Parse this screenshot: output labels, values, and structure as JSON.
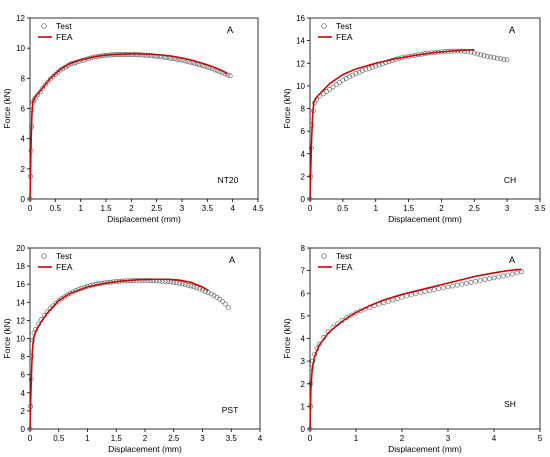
{
  "chart_data": [
    {
      "type": "scatter",
      "panel_label": "A",
      "corner_tag": "NT20",
      "xlabel": "Displacement (mm)",
      "ylabel": "Force (kN)",
      "xlim": [
        0,
        4.5
      ],
      "ylim": [
        0,
        12
      ],
      "xticks": [
        0,
        0.5,
        1,
        1.5,
        2,
        2.5,
        3,
        3.5,
        4,
        4.5
      ],
      "yticks": [
        0,
        2,
        4,
        6,
        8,
        10,
        12
      ],
      "legend": {
        "position": "top-left",
        "entries": [
          "Test",
          "FEA"
        ]
      },
      "series": [
        {
          "name": "Test",
          "style": "open-circle",
          "color": "#555555",
          "x": [
            0,
            0.01,
            0.02,
            0.03,
            0.04,
            0.06,
            0.08,
            0.1,
            0.15,
            0.2,
            0.25,
            0.3,
            0.35,
            0.4,
            0.45,
            0.5,
            0.55,
            0.6,
            0.65,
            0.7,
            0.75,
            0.8,
            0.85,
            0.9,
            0.95,
            1.0,
            1.05,
            1.1,
            1.15,
            1.2,
            1.25,
            1.3,
            1.35,
            1.4,
            1.45,
            1.5,
            1.55,
            1.6,
            1.65,
            1.7,
            1.75,
            1.8,
            1.85,
            1.9,
            1.95,
            2.0,
            2.05,
            2.1,
            2.15,
            2.2,
            2.25,
            2.3,
            2.35,
            2.4,
            2.45,
            2.5,
            2.55,
            2.6,
            2.65,
            2.7,
            2.75,
            2.8,
            2.85,
            2.9,
            2.95,
            3.0,
            3.05,
            3.1,
            3.15,
            3.2,
            3.25,
            3.3,
            3.35,
            3.4,
            3.45,
            3.5,
            3.55,
            3.6,
            3.65,
            3.7,
            3.75,
            3.8,
            3.85,
            3.9,
            3.95
          ],
          "y": [
            0,
            1.5,
            3.2,
            4.8,
            5.9,
            6.4,
            6.55,
            6.7,
            6.9,
            7.1,
            7.35,
            7.55,
            7.75,
            7.95,
            8.1,
            8.25,
            8.4,
            8.55,
            8.65,
            8.75,
            8.85,
            8.95,
            9.0,
            9.05,
            9.1,
            9.15,
            9.2,
            9.25,
            9.3,
            9.35,
            9.4,
            9.42,
            9.45,
            9.48,
            9.5,
            9.52,
            9.54,
            9.55,
            9.56,
            9.57,
            9.58,
            9.58,
            9.58,
            9.58,
            9.58,
            9.58,
            9.58,
            9.57,
            9.56,
            9.55,
            9.54,
            9.53,
            9.52,
            9.5,
            9.48,
            9.46,
            9.44,
            9.42,
            9.4,
            9.38,
            9.35,
            9.32,
            9.3,
            9.27,
            9.24,
            9.2,
            9.16,
            9.12,
            9.08,
            9.04,
            9.0,
            8.95,
            8.9,
            8.85,
            8.8,
            8.75,
            8.7,
            8.63,
            8.56,
            8.5,
            8.43,
            8.36,
            8.3,
            8.23,
            8.17
          ]
        },
        {
          "name": "FEA",
          "style": "line",
          "color": "#cc0000",
          "x": [
            0,
            0.02,
            0.04,
            0.06,
            0.1,
            0.2,
            0.4,
            0.6,
            0.8,
            1.0,
            1.2,
            1.4,
            1.6,
            1.8,
            2.0,
            2.2,
            2.4,
            2.6,
            2.8,
            3.0,
            3.2,
            3.4,
            3.6,
            3.8,
            3.9
          ],
          "y": [
            0,
            3.5,
            5.8,
            6.5,
            6.75,
            7.15,
            8.0,
            8.6,
            9.0,
            9.22,
            9.38,
            9.5,
            9.57,
            9.6,
            9.62,
            9.62,
            9.6,
            9.55,
            9.47,
            9.35,
            9.2,
            9.0,
            8.78,
            8.5,
            8.3
          ]
        }
      ]
    },
    {
      "type": "scatter",
      "panel_label": "A",
      "corner_tag": "CH",
      "xlabel": "Displacement (mm)",
      "ylabel": "Force (kN)",
      "xlim": [
        0,
        3.5
      ],
      "ylim": [
        0,
        16
      ],
      "xticks": [
        0,
        0.5,
        1,
        1.5,
        2,
        2.5,
        3,
        3.5
      ],
      "yticks": [
        0,
        2,
        4,
        6,
        8,
        10,
        12,
        14,
        16
      ],
      "legend": {
        "position": "top-left",
        "entries": [
          "Test",
          "FEA"
        ]
      },
      "series": [
        {
          "name": "Test",
          "style": "open-circle",
          "color": "#555555",
          "x": [
            0,
            0.01,
            0.02,
            0.03,
            0.05,
            0.07,
            0.1,
            0.15,
            0.2,
            0.25,
            0.3,
            0.35,
            0.4,
            0.45,
            0.5,
            0.55,
            0.6,
            0.65,
            0.7,
            0.75,
            0.8,
            0.85,
            0.9,
            0.95,
            1.0,
            1.05,
            1.1,
            1.15,
            1.2,
            1.25,
            1.3,
            1.35,
            1.4,
            1.45,
            1.5,
            1.55,
            1.6,
            1.65,
            1.7,
            1.75,
            1.8,
            1.85,
            1.9,
            1.95,
            2.0,
            2.05,
            2.1,
            2.15,
            2.2,
            2.25,
            2.3,
            2.35,
            2.4,
            2.45,
            2.5,
            2.55,
            2.6,
            2.65,
            2.7,
            2.75,
            2.8,
            2.85,
            2.9,
            2.95,
            3.0
          ],
          "y": [
            0,
            2.0,
            4.5,
            6.5,
            7.8,
            8.5,
            8.8,
            9.1,
            9.3,
            9.5,
            9.7,
            9.9,
            10.1,
            10.3,
            10.5,
            10.65,
            10.8,
            10.95,
            11.1,
            11.2,
            11.35,
            11.45,
            11.55,
            11.65,
            11.75,
            11.85,
            11.95,
            12.05,
            12.15,
            12.25,
            12.35,
            12.45,
            12.5,
            12.55,
            12.6,
            12.65,
            12.7,
            12.75,
            12.8,
            12.85,
            12.9,
            12.92,
            12.95,
            12.98,
            13.0,
            13.02,
            13.05,
            13.07,
            13.08,
            13.08,
            13.08,
            13.06,
            13.02,
            12.97,
            12.9,
            12.82,
            12.74,
            12.66,
            12.6,
            12.55,
            12.5,
            12.45,
            12.4,
            12.35,
            12.3
          ]
        },
        {
          "name": "FEA",
          "style": "line",
          "color": "#cc0000",
          "x": [
            0,
            0.02,
            0.04,
            0.06,
            0.1,
            0.2,
            0.3,
            0.5,
            0.7,
            1.0,
            1.3,
            1.6,
            1.9,
            2.2,
            2.5
          ],
          "y": [
            0,
            4.5,
            7.5,
            8.6,
            9.0,
            9.6,
            10.2,
            11.0,
            11.5,
            12.0,
            12.4,
            12.7,
            12.95,
            13.1,
            13.2
          ]
        }
      ]
    },
    {
      "type": "scatter",
      "panel_label": "A",
      "corner_tag": "PST",
      "xlabel": "Displacement (mm)",
      "ylabel": "Force (kN)",
      "xlim": [
        0,
        4
      ],
      "ylim": [
        0,
        20
      ],
      "xticks": [
        0,
        0.5,
        1,
        1.5,
        2,
        2.5,
        3,
        3.5,
        4
      ],
      "yticks": [
        0,
        2,
        4,
        6,
        8,
        10,
        12,
        14,
        16,
        18,
        20
      ],
      "legend": {
        "position": "top-left",
        "entries": [
          "Test",
          "FEA"
        ]
      },
      "series": [
        {
          "name": "Test",
          "style": "open-circle",
          "color": "#555555",
          "x": [
            0,
            0.01,
            0.02,
            0.03,
            0.05,
            0.07,
            0.1,
            0.15,
            0.2,
            0.25,
            0.3,
            0.35,
            0.4,
            0.45,
            0.5,
            0.55,
            0.6,
            0.65,
            0.7,
            0.75,
            0.8,
            0.85,
            0.9,
            0.95,
            1.0,
            1.05,
            1.1,
            1.15,
            1.2,
            1.25,
            1.3,
            1.35,
            1.4,
            1.45,
            1.5,
            1.55,
            1.6,
            1.65,
            1.7,
            1.75,
            1.8,
            1.85,
            1.9,
            1.95,
            2.0,
            2.05,
            2.1,
            2.15,
            2.2,
            2.25,
            2.3,
            2.35,
            2.4,
            2.45,
            2.5,
            2.55,
            2.6,
            2.65,
            2.7,
            2.75,
            2.8,
            2.85,
            2.9,
            2.95,
            3.0,
            3.05,
            3.1,
            3.15,
            3.2,
            3.25,
            3.3,
            3.35,
            3.4,
            3.45
          ],
          "y": [
            0,
            2.5,
            5.5,
            8.0,
            9.8,
            10.6,
            11.0,
            11.6,
            12.1,
            12.55,
            12.95,
            13.3,
            13.6,
            13.9,
            14.15,
            14.4,
            14.6,
            14.8,
            15.0,
            15.15,
            15.3,
            15.45,
            15.55,
            15.65,
            15.75,
            15.85,
            15.92,
            16.0,
            16.05,
            16.1,
            16.15,
            16.2,
            16.23,
            16.26,
            16.29,
            16.32,
            16.34,
            16.36,
            16.37,
            16.38,
            16.39,
            16.4,
            16.4,
            16.4,
            16.4,
            16.4,
            16.39,
            16.38,
            16.37,
            16.35,
            16.33,
            16.3,
            16.27,
            16.24,
            16.2,
            16.15,
            16.1,
            16.03,
            15.96,
            15.88,
            15.8,
            15.7,
            15.6,
            15.48,
            15.36,
            15.22,
            15.08,
            14.92,
            14.75,
            14.55,
            14.35,
            14.1,
            13.8,
            13.4
          ]
        },
        {
          "name": "FEA",
          "style": "line",
          "color": "#cc0000",
          "x": [
            0,
            0.02,
            0.04,
            0.06,
            0.1,
            0.2,
            0.3,
            0.5,
            0.7,
            1.0,
            1.3,
            1.6,
            1.9,
            2.2,
            2.4,
            2.6,
            2.8,
            3.0,
            3.1
          ],
          "y": [
            0,
            5.0,
            8.5,
            10.0,
            10.8,
            11.9,
            12.8,
            14.2,
            15.0,
            15.7,
            16.1,
            16.35,
            16.5,
            16.55,
            16.55,
            16.45,
            16.2,
            15.7,
            15.3
          ]
        }
      ]
    },
    {
      "type": "scatter",
      "panel_label": "A",
      "corner_tag": "SH",
      "xlabel": "Displacement (mm)",
      "ylabel": "Force (kN)",
      "xlim": [
        0,
        5
      ],
      "ylim": [
        0,
        8
      ],
      "xticks": [
        0,
        1,
        2,
        3,
        4,
        5
      ],
      "yticks": [
        0,
        1,
        2,
        3,
        4,
        5,
        6,
        7,
        8
      ],
      "legend": {
        "position": "top-left",
        "entries": [
          "Test",
          "FEA"
        ]
      },
      "series": [
        {
          "name": "Test",
          "style": "open-circle",
          "color": "#555555",
          "x": [
            0,
            0.01,
            0.02,
            0.04,
            0.06,
            0.1,
            0.15,
            0.2,
            0.3,
            0.4,
            0.5,
            0.6,
            0.7,
            0.8,
            0.9,
            1.0,
            1.1,
            1.2,
            1.3,
            1.4,
            1.5,
            1.6,
            1.7,
            1.8,
            1.9,
            2.0,
            2.1,
            2.2,
            2.3,
            2.4,
            2.5,
            2.6,
            2.7,
            2.8,
            2.9,
            3.0,
            3.1,
            3.2,
            3.3,
            3.4,
            3.5,
            3.6,
            3.7,
            3.8,
            3.9,
            4.0,
            4.1,
            4.2,
            4.3,
            4.4,
            4.5,
            4.6
          ],
          "y": [
            0,
            1.0,
            2.0,
            2.7,
            3.0,
            3.3,
            3.55,
            3.75,
            4.05,
            4.3,
            4.5,
            4.65,
            4.8,
            4.92,
            5.03,
            5.13,
            5.22,
            5.3,
            5.38,
            5.45,
            5.52,
            5.58,
            5.64,
            5.7,
            5.76,
            5.82,
            5.88,
            5.93,
            5.98,
            6.03,
            6.08,
            6.12,
            6.16,
            6.2,
            6.24,
            6.28,
            6.32,
            6.36,
            6.4,
            6.44,
            6.48,
            6.52,
            6.56,
            6.6,
            6.64,
            6.68,
            6.72,
            6.76,
            6.8,
            6.85,
            6.9,
            6.95
          ]
        },
        {
          "name": "FEA",
          "style": "line",
          "color": "#cc0000",
          "x": [
            0,
            0.02,
            0.05,
            0.1,
            0.2,
            0.4,
            0.6,
            0.8,
            1.0,
            1.3,
            1.6,
            2.0,
            2.4,
            2.8,
            3.2,
            3.6,
            4.0,
            4.3,
            4.5,
            4.6
          ],
          "y": [
            0,
            1.8,
            2.7,
            3.2,
            3.7,
            4.25,
            4.6,
            4.9,
            5.15,
            5.45,
            5.7,
            5.95,
            6.15,
            6.35,
            6.55,
            6.75,
            6.9,
            7.0,
            7.05,
            7.05
          ]
        }
      ]
    }
  ]
}
